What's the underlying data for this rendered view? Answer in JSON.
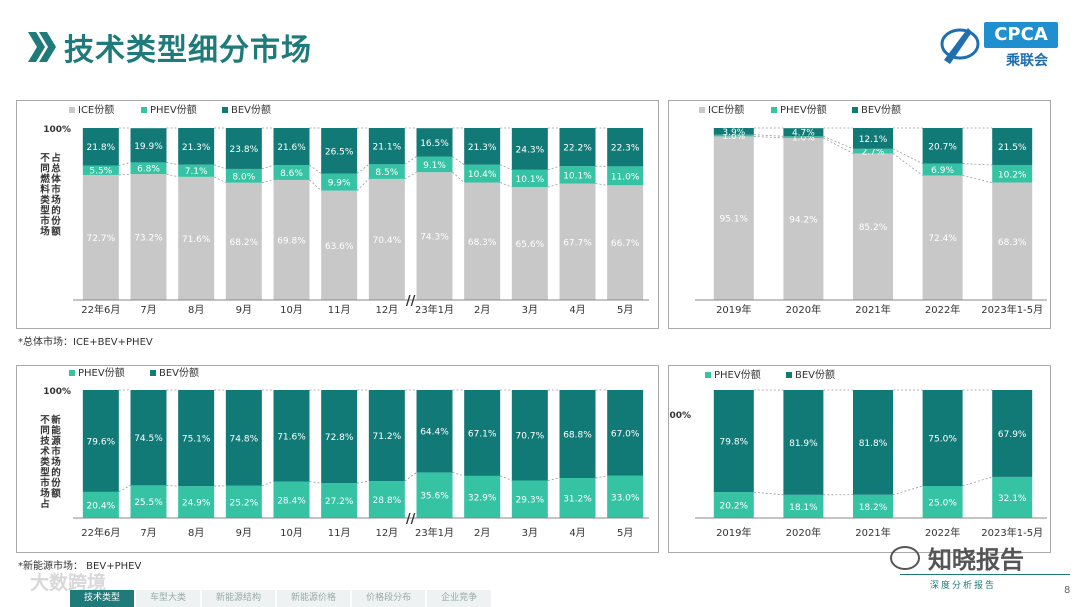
{
  "header": {
    "title": "技术类型细分市场"
  },
  "logo": {
    "brand": "CPCA",
    "sub": "乘联会"
  },
  "colors": {
    "ice": "#c8c8c8",
    "phev": "#35c3a4",
    "bev": "#127a76",
    "accent": "#1f7a7a"
  },
  "notes": {
    "top": "*总体市场：ICE+BEV+PHEV",
    "bottom": "*新能源市场：  BEV+PHEV"
  },
  "footer": {
    "page_number": "8",
    "slogan": "深度分析报告",
    "watermark_left": "大数跨境",
    "watermark_right": "知晓报告",
    "tabs": [
      "技术类型",
      "车型大类",
      "新能源结构",
      "新能源价格",
      "价格段分布",
      "企业竞争"
    ]
  },
  "chart_data": [
    {
      "id": "overall_monthly",
      "type": "bar",
      "stacked": true,
      "ylabel": "不同燃料类型市场占总体市场的份额",
      "ytop_label": "100%",
      "categories": [
        "22年6月",
        "7月",
        "8月",
        "9月",
        "10月",
        "11月",
        "12月",
        "23年1月",
        "2月",
        "3月",
        "4月",
        "5月"
      ],
      "series": [
        {
          "name": "ICE份额",
          "values": [
            72.7,
            73.2,
            71.6,
            68.2,
            69.8,
            63.6,
            70.4,
            74.3,
            68.3,
            65.6,
            67.7,
            66.7
          ],
          "labels": [
            "72.7%",
            "73.2%",
            "71.6%",
            "68.2%",
            "69.8%",
            "63.6%",
            "70.4%",
            "74.3%",
            "68.3%",
            "65.6%",
            "67.7%",
            "66.7%"
          ]
        },
        {
          "name": "PHEV份额",
          "values": [
            5.5,
            6.8,
            7.1,
            8.0,
            8.6,
            9.9,
            8.5,
            9.1,
            10.4,
            10.1,
            10.1,
            11.0
          ],
          "labels": [
            "5.5%",
            "6.8%",
            "7.1%",
            "8.0%",
            "8.6%",
            "9.9%",
            "8.5%",
            "9.1%",
            "10.4%",
            "10.1%",
            "10.1%",
            "11.0%"
          ]
        },
        {
          "name": "BEV份额",
          "values": [
            21.8,
            19.9,
            21.3,
            23.8,
            21.6,
            26.5,
            21.1,
            16.5,
            21.3,
            24.3,
            22.2,
            22.3
          ],
          "labels": [
            "21.8%",
            "19.9%",
            "21.3%",
            "23.8%",
            "21.6%",
            "26.5%",
            "21.1%",
            "16.5%",
            "21.3%",
            "24.3%",
            "22.2%",
            "22.3%"
          ]
        }
      ],
      "axis_break": "//"
    },
    {
      "id": "overall_yearly",
      "type": "bar",
      "stacked": true,
      "categories": [
        "2019年",
        "2020年",
        "2021年",
        "2022年",
        "2023年1-5月"
      ],
      "series": [
        {
          "name": "ICE份额",
          "values": [
            95.1,
            94.2,
            85.2,
            72.4,
            68.3
          ],
          "labels": [
            "95.1%",
            "94.2%",
            "85.2%",
            "72.4%",
            "68.3%"
          ]
        },
        {
          "name": "PHEV份额",
          "values": [
            1.0,
            1.0,
            2.7,
            6.9,
            10.2
          ],
          "labels": [
            "1.0%",
            "1.0%",
            "2.7%",
            "6.9%",
            "10.2%"
          ]
        },
        {
          "name": "BEV份额",
          "values": [
            3.9,
            4.7,
            12.1,
            20.7,
            21.5
          ],
          "labels": [
            "3.9%",
            "4.7%",
            "12.1%",
            "20.7%",
            "21.5%"
          ]
        }
      ]
    },
    {
      "id": "nev_monthly",
      "type": "bar",
      "stacked": true,
      "ylabel": "不同技术类型市场占新能源市场的份额",
      "ytop_label": "100%",
      "categories": [
        "22年6月",
        "7月",
        "8月",
        "9月",
        "10月",
        "11月",
        "12月",
        "23年1月",
        "2月",
        "3月",
        "4月",
        "5月"
      ],
      "series": [
        {
          "name": "PHEV份额",
          "values": [
            20.4,
            25.5,
            24.9,
            25.2,
            28.4,
            27.2,
            28.8,
            35.6,
            32.9,
            29.3,
            31.2,
            33.0
          ],
          "labels": [
            "20.4%",
            "25.5%",
            "24.9%",
            "25.2%",
            "28.4%",
            "27.2%",
            "28.8%",
            "35.6%",
            "32.9%",
            "29.3%",
            "31.2%",
            "33.0%"
          ]
        },
        {
          "name": "BEV份额",
          "values": [
            79.6,
            74.5,
            75.1,
            74.8,
            71.6,
            72.8,
            71.2,
            64.4,
            67.1,
            70.7,
            68.8,
            67.0
          ],
          "labels": [
            "79.6%",
            "74.5%",
            "75.1%",
            "74.8%",
            "71.6%",
            "72.8%",
            "71.2%",
            "64.4%",
            "67.1%",
            "70.7%",
            "68.8%",
            "67.0%"
          ]
        }
      ],
      "axis_break": "//"
    },
    {
      "id": "nev_yearly",
      "type": "bar",
      "stacked": true,
      "ytop_label": "100%",
      "categories": [
        "2019年",
        "2020年",
        "2021年",
        "2022年",
        "2023年1-5月"
      ],
      "series": [
        {
          "name": "PHEV份额",
          "values": [
            20.2,
            18.1,
            18.2,
            25.0,
            32.1
          ],
          "labels": [
            "20.2%",
            "18.1%",
            "18.2%",
            "25.0%",
            "32.1%"
          ]
        },
        {
          "name": "BEV份额",
          "values": [
            79.8,
            81.9,
            81.8,
            75.0,
            67.9
          ],
          "labels": [
            "79.8%",
            "81.9%",
            "81.8%",
            "75.0%",
            "67.9%"
          ]
        }
      ]
    }
  ]
}
